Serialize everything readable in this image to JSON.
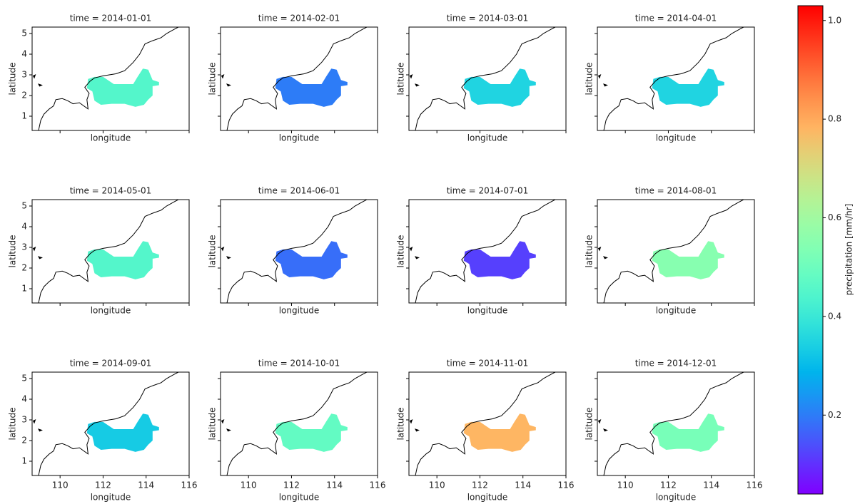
{
  "chart_data": {
    "type": "map",
    "titles": [
      "time = 2014-01-01",
      "time = 2014-02-01",
      "time = 2014-03-01",
      "time = 2014-04-01",
      "time = 2014-05-01",
      "time = 2014-06-01",
      "time = 2014-07-01",
      "time = 2014-08-01",
      "time = 2014-09-01",
      "time = 2014-10-01",
      "time = 2014-11-01",
      "time = 2014-12-01"
    ],
    "values": [
      0.45,
      0.2,
      0.35,
      0.35,
      0.45,
      0.18,
      0.12,
      0.55,
      0.33,
      0.48,
      0.78,
      0.52
    ],
    "xlabel": "longitude",
    "ylabel": "latitude",
    "xlim": [
      108.7,
      116.0
    ],
    "xticks": [
      110,
      112,
      114,
      116
    ],
    "ylim": [
      0.31,
      5.31
    ],
    "yticks": [
      1,
      2,
      3,
      4,
      5
    ],
    "colormap": "rainbow",
    "colorbar": {
      "label": "precipitation [mm/hr]",
      "lim": [
        0.04,
        1.03
      ],
      "ticks": [
        0.2,
        0.4,
        0.6,
        0.8,
        {
          "value": 1,
          "label": "1.0"
        }
      ]
    }
  }
}
